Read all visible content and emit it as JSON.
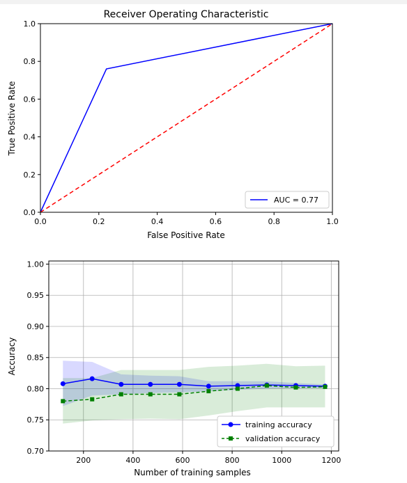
{
  "chart_data": [
    {
      "type": "line",
      "title": "Receiver Operating Characteristic",
      "xlabel": "False Positive Rate",
      "ylabel": "True Positive Rate",
      "xlim": [
        0,
        1
      ],
      "ylim": [
        0,
        1
      ],
      "xticks": [
        "0.0",
        "0.2",
        "0.4",
        "0.6",
        "0.8",
        "1.0"
      ],
      "yticks": [
        "0.0",
        "0.2",
        "0.4",
        "0.6",
        "0.8",
        "1.0"
      ],
      "grid": false,
      "legend_position": "lower-right",
      "series": [
        {
          "name": "AUC = 0.77",
          "color": "#0000ff",
          "style": "solid",
          "x": [
            0.0,
            0.226,
            1.0
          ],
          "y": [
            0.0,
            0.76,
            1.0
          ]
        },
        {
          "name": "",
          "color": "#ff0000",
          "style": "dashed",
          "x": [
            0.0,
            1.0
          ],
          "y": [
            0.0,
            1.0
          ]
        }
      ]
    },
    {
      "type": "line",
      "title": "",
      "xlabel": "Number of training samples",
      "ylabel": "Accuracy",
      "xlim": [
        60,
        1230
      ],
      "ylim": [
        0.7,
        1.005
      ],
      "xticks": [
        "200",
        "400",
        "600",
        "800",
        "1000",
        "1200"
      ],
      "yticks": [
        "0.70",
        "0.75",
        "0.80",
        "0.85",
        "0.90",
        "0.95",
        "1.00"
      ],
      "grid": true,
      "legend_position": "lower-right",
      "x": [
        117,
        235,
        352,
        470,
        587,
        705,
        822,
        940,
        1057,
        1175
      ],
      "series": [
        {
          "name": "training accuracy",
          "color": "#0000ff",
          "marker": "circle",
          "style": "solid",
          "values": [
            0.808,
            0.816,
            0.807,
            0.807,
            0.807,
            0.804,
            0.805,
            0.806,
            0.805,
            0.804
          ],
          "lower": [
            0.772,
            0.789,
            0.791,
            0.793,
            0.794,
            0.796,
            0.798,
            0.8,
            0.801,
            0.801
          ],
          "upper": [
            0.845,
            0.843,
            0.823,
            0.821,
            0.82,
            0.812,
            0.812,
            0.812,
            0.809,
            0.807
          ]
        },
        {
          "name": "validation accuracy",
          "color": "#008000",
          "marker": "square",
          "style": "dashed",
          "values": [
            0.78,
            0.783,
            0.791,
            0.791,
            0.791,
            0.796,
            0.8,
            0.805,
            0.802,
            0.803
          ],
          "lower": [
            0.744,
            0.749,
            0.751,
            0.752,
            0.751,
            0.757,
            0.764,
            0.77,
            0.77,
            0.77
          ],
          "upper": [
            0.817,
            0.817,
            0.83,
            0.83,
            0.83,
            0.835,
            0.837,
            0.84,
            0.836,
            0.837
          ]
        }
      ]
    }
  ]
}
